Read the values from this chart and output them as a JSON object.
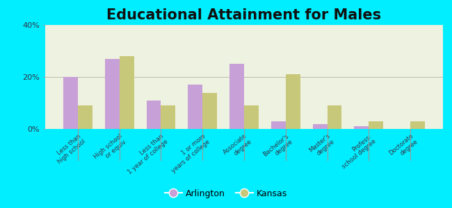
{
  "title": "Educational Attainment for Males",
  "categories": [
    "Less than\nhigh school",
    "High school\nor equiv.",
    "Less than\n1 year of college",
    "1 or more\nyears of college",
    "Associate\ndegree",
    "Bachelor's\ndegree",
    "Master's\ndegree",
    "Profess.\nschool degree",
    "Doctorate\ndegree"
  ],
  "arlington": [
    20,
    27,
    11,
    17,
    25,
    3,
    2,
    1,
    0
  ],
  "kansas": [
    9,
    28,
    9,
    14,
    9,
    21,
    9,
    3,
    3
  ],
  "arlington_color": "#c8a0d8",
  "kansas_color": "#c8c87a",
  "bg_color": "#00eeff",
  "plot_bg": "#eef2e0",
  "ylim": [
    0,
    40
  ],
  "yticks": [
    0,
    20,
    40
  ],
  "ytick_labels": [
    "0%",
    "20%",
    "40%"
  ],
  "legend_labels": [
    "Arlington",
    "Kansas"
  ],
  "bar_width": 0.35,
  "title_fontsize": 15
}
